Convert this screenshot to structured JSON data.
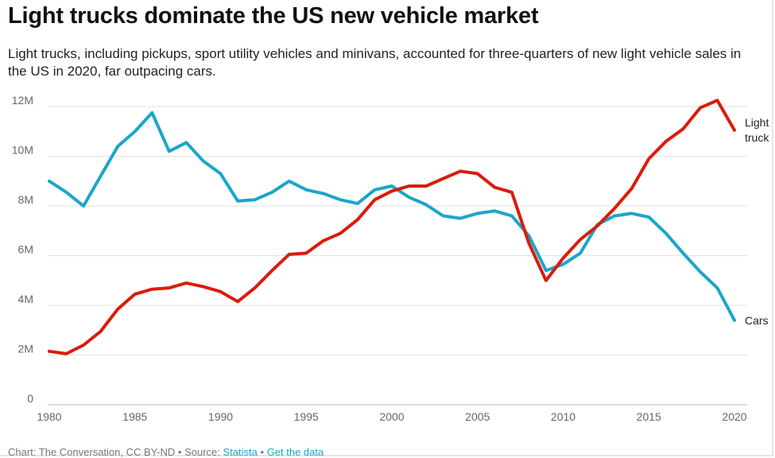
{
  "header": {
    "title": "Light trucks dominate the US new vehicle market",
    "subtitle": "Light trucks, including pickups, sport utility vehicles and minivans, accounted for three-quarters of new light vehicle sales in the US in 2020, far outpacing cars."
  },
  "footer": {
    "credit": "Chart: The Conversation, CC BY-ND",
    "separator": "•",
    "source_label": "Source:",
    "source_link": "Statista",
    "data_link": "Get the data"
  },
  "colors": {
    "cars": "#1ba6c9",
    "light_trucks": "#d91c0b",
    "grid": "#e2e2e2",
    "axis_text": "#666666"
  },
  "chart_data": {
    "type": "line",
    "x": [
      1980,
      1981,
      1982,
      1983,
      1984,
      1985,
      1986,
      1987,
      1988,
      1989,
      1990,
      1991,
      1992,
      1993,
      1994,
      1995,
      1996,
      1997,
      1998,
      1999,
      2000,
      2001,
      2002,
      2003,
      2004,
      2005,
      2006,
      2007,
      2008,
      2009,
      2010,
      2011,
      2012,
      2013,
      2014,
      2015,
      2016,
      2017,
      2018,
      2019,
      2020
    ],
    "xlim": [
      1980,
      2020
    ],
    "xticks": [
      1980,
      1985,
      1990,
      1995,
      2000,
      2005,
      2010,
      2015,
      2020
    ],
    "ylim": [
      0,
      12000000
    ],
    "yticks": [
      0,
      2000000,
      4000000,
      6000000,
      8000000,
      10000000,
      12000000
    ],
    "ytick_labels": [
      "0",
      "2M",
      "4M",
      "6M",
      "8M",
      "10M",
      "12M"
    ],
    "grid": true,
    "series": [
      {
        "name": "Cars",
        "label_lines": [
          "Cars"
        ],
        "color": "#1ba6c9",
        "values": [
          9000000,
          8550000,
          8000000,
          9200000,
          10400000,
          11000000,
          11750000,
          10200000,
          10550000,
          9800000,
          9300000,
          8200000,
          8250000,
          8550000,
          9000000,
          8650000,
          8500000,
          8250000,
          8100000,
          8650000,
          8800000,
          8350000,
          8050000,
          7600000,
          7500000,
          7700000,
          7800000,
          7600000,
          6800000,
          5400000,
          5650000,
          6100000,
          7250000,
          7600000,
          7700000,
          7550000,
          6900000,
          6100000,
          5350000,
          4700000,
          3400000
        ]
      },
      {
        "name": "Light trucks",
        "label_lines": [
          "Light",
          "truck"
        ],
        "color": "#d91c0b",
        "values": [
          2150000,
          2050000,
          2400000,
          2950000,
          3850000,
          4450000,
          4650000,
          4700000,
          4900000,
          4750000,
          4550000,
          4150000,
          4700000,
          5400000,
          6050000,
          6100000,
          6600000,
          6900000,
          7450000,
          8250000,
          8600000,
          8800000,
          8800000,
          9100000,
          9400000,
          9300000,
          8750000,
          8550000,
          6500000,
          5000000,
          5900000,
          6650000,
          7200000,
          7900000,
          8700000,
          9900000,
          10600000,
          11100000,
          11950000,
          12250000,
          11050000
        ]
      }
    ]
  }
}
